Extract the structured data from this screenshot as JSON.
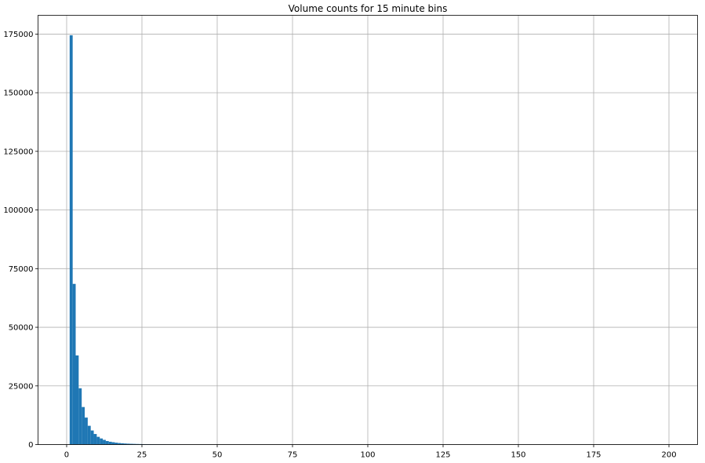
{
  "chart_data": {
    "type": "bar",
    "title": "Volume counts for 15 minute bins",
    "xlabel": "",
    "ylabel": "",
    "xlim": [
      -9.5,
      209.5
    ],
    "ylim": [
      0,
      183000
    ],
    "x_ticks": [
      0,
      25,
      50,
      75,
      100,
      125,
      150,
      175,
      200
    ],
    "y_ticks": [
      0,
      25000,
      50000,
      75000,
      100000,
      125000,
      150000,
      175000
    ],
    "grid": true,
    "bar_color": "#1f77b4",
    "bin_width": 1,
    "bins": [
      {
        "x0": 1,
        "count": 174500
      },
      {
        "x0": 2,
        "count": 68500
      },
      {
        "x0": 3,
        "count": 38000
      },
      {
        "x0": 4,
        "count": 24000
      },
      {
        "x0": 5,
        "count": 16000
      },
      {
        "x0": 6,
        "count": 11500
      },
      {
        "x0": 7,
        "count": 8000
      },
      {
        "x0": 8,
        "count": 6000
      },
      {
        "x0": 9,
        "count": 4500
      },
      {
        "x0": 10,
        "count": 3300
      },
      {
        "x0": 11,
        "count": 2600
      },
      {
        "x0": 12,
        "count": 2000
      },
      {
        "x0": 13,
        "count": 1500
      },
      {
        "x0": 14,
        "count": 1200
      },
      {
        "x0": 15,
        "count": 1000
      },
      {
        "x0": 16,
        "count": 800
      },
      {
        "x0": 17,
        "count": 650
      },
      {
        "x0": 18,
        "count": 550
      },
      {
        "x0": 19,
        "count": 450
      },
      {
        "x0": 20,
        "count": 380
      },
      {
        "x0": 21,
        "count": 320
      },
      {
        "x0": 22,
        "count": 280
      },
      {
        "x0": 23,
        "count": 240
      },
      {
        "x0": 24,
        "count": 210
      },
      {
        "x0": 25,
        "count": 180
      },
      {
        "x0": 26,
        "count": 160
      },
      {
        "x0": 27,
        "count": 140
      },
      {
        "x0": 28,
        "count": 120
      },
      {
        "x0": 29,
        "count": 100
      },
      {
        "x0": 30,
        "count": 80
      },
      {
        "x0": 31,
        "count": 60
      },
      {
        "x0": 32,
        "count": 50
      },
      {
        "x0": 33,
        "count": 40
      },
      {
        "x0": 34,
        "count": 30
      },
      {
        "x0": 35,
        "count": 25
      },
      {
        "x0": 36,
        "count": 20
      },
      {
        "x0": 37,
        "count": 15
      },
      {
        "x0": 38,
        "count": 12
      },
      {
        "x0": 39,
        "count": 10
      },
      {
        "x0": 40,
        "count": 8
      }
    ]
  }
}
